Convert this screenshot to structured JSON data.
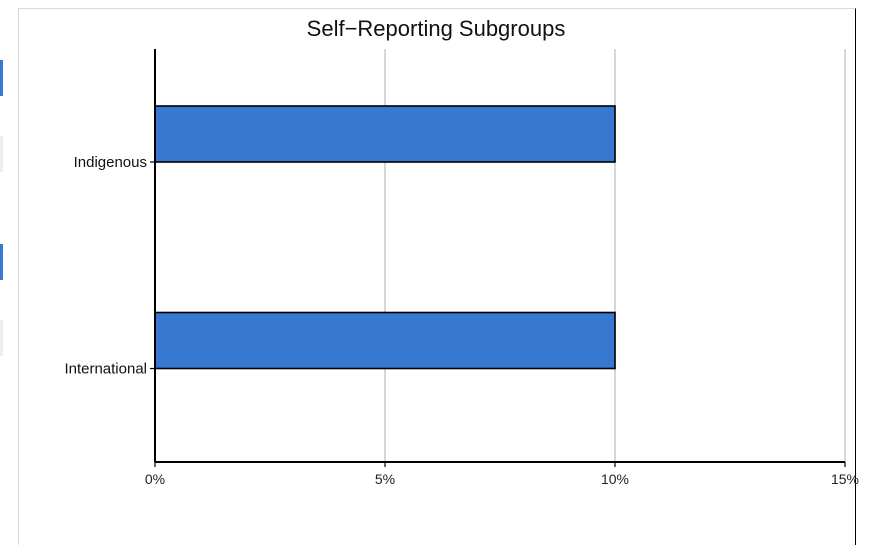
{
  "chart_data": {
    "type": "bar",
    "orientation": "horizontal",
    "title": "Self−Reporting Subgroups",
    "categories": [
      "Indigenous",
      "International"
    ],
    "values": [
      10,
      10
    ],
    "xlim": [
      0,
      15
    ],
    "xticks": [
      0,
      5,
      10,
      15
    ],
    "tick_suffix": "%",
    "xlabel": "",
    "ylabel": "",
    "grid": "vertical",
    "bar_color": "#3779d0",
    "bar_edge_color": "#000000"
  }
}
